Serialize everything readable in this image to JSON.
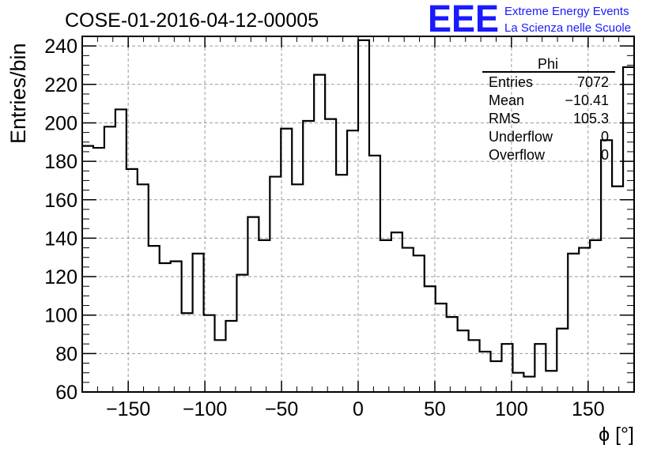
{
  "header": {
    "run_title": "COSE-01-2016-04-12-00005",
    "logo_text": "EEE",
    "brand_line1": "Extreme Energy Events",
    "brand_line2": "La Scienza nelle Scuole"
  },
  "stats": {
    "title": "Phi",
    "rows": [
      {
        "label": "Entries",
        "value": "7072"
      },
      {
        "label": "Mean",
        "value": "−10.41"
      },
      {
        "label": "RMS",
        "value": "105.3"
      },
      {
        "label": "Underflow",
        "value": "0"
      },
      {
        "label": "Overflow",
        "value": "0"
      }
    ]
  },
  "colors": {
    "brand": "#1a1aff",
    "line": "#000000",
    "grid": "#9a9a9a"
  },
  "chart_data": {
    "type": "histogram",
    "xlabel": "ϕ [°]",
    "ylabel": "Entries/bin",
    "xlim": [
      -180,
      180
    ],
    "ylim": [
      60,
      245
    ],
    "grid": true,
    "x_ticks": [
      -150,
      -100,
      -50,
      0,
      50,
      100,
      150
    ],
    "x_tick_labels": [
      "−150",
      "−100",
      "−50",
      "0",
      "50",
      "100",
      "150"
    ],
    "y_ticks": [
      60,
      80,
      100,
      120,
      140,
      160,
      180,
      200,
      220,
      240
    ],
    "y_tick_labels": [
      "60",
      "80",
      "100",
      "120",
      "140",
      "160",
      "180",
      "200",
      "220",
      "240"
    ],
    "bin_edges_start": -180,
    "bin_width": 7.2,
    "values": [
      188,
      187,
      198,
      207,
      176,
      168,
      136,
      127,
      128,
      101,
      132,
      100,
      87,
      97,
      121,
      151,
      139,
      172,
      197,
      168,
      201,
      225,
      202,
      173,
      196,
      243,
      183,
      139,
      143,
      135,
      131,
      115,
      106,
      99,
      92,
      87,
      81,
      76,
      85,
      70,
      68,
      85,
      71,
      93,
      132,
      135,
      139,
      191,
      167,
      229
    ]
  }
}
